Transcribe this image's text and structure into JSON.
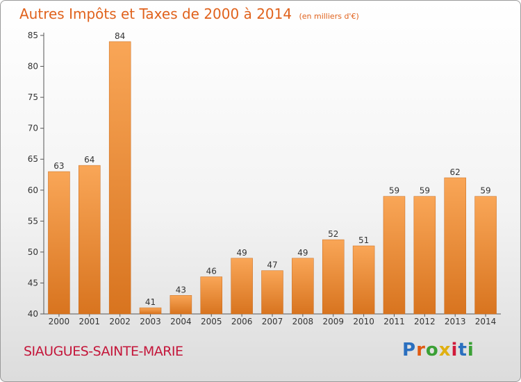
{
  "header": {
    "title": "Autres Impôts et Taxes de 2000 à 2014",
    "unit": "(en milliers d'€)"
  },
  "footer": {
    "commune": "SIAUGUES-SAINTE-MARIE",
    "logo": "Proxiti",
    "logo_colors": [
      "#2a6fbf",
      "#e05a12",
      "#3aa035",
      "#e0b010",
      "#d01a3a",
      "#2a6fbf",
      "#3aa035"
    ]
  },
  "chart_data": {
    "type": "bar",
    "categories": [
      "2000",
      "2001",
      "2002",
      "2003",
      "2004",
      "2005",
      "2006",
      "2007",
      "2008",
      "2009",
      "2010",
      "2011",
      "2012",
      "2013",
      "2014"
    ],
    "values": [
      63,
      64,
      84,
      41,
      43,
      46,
      49,
      47,
      49,
      52,
      51,
      59,
      59,
      62,
      59
    ],
    "title": "Autres Impôts et Taxes de 2000 à 2014",
    "xlabel": "",
    "ylabel": "",
    "ylim": [
      40,
      85
    ],
    "yticks": [
      40,
      45,
      50,
      55,
      60,
      65,
      70,
      75,
      80,
      85
    ],
    "grid": false,
    "bar_color": "#ee8c30",
    "data_labels": true
  }
}
